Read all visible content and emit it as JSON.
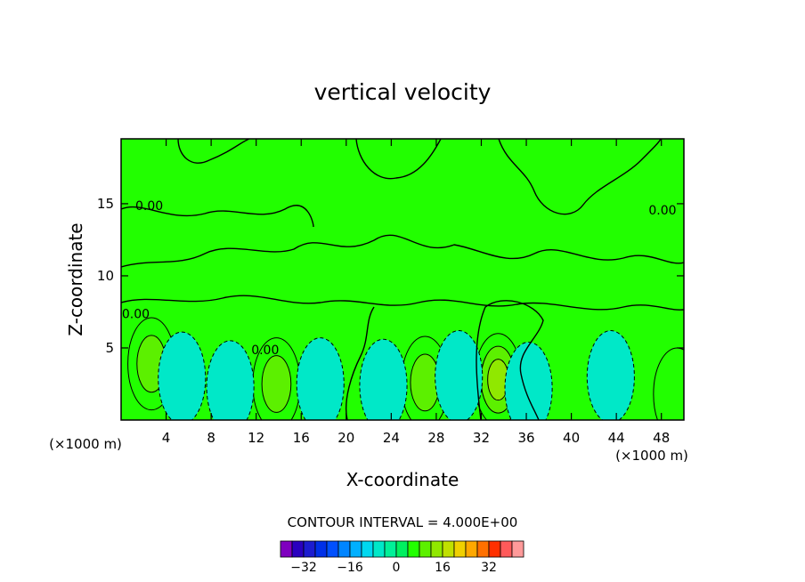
{
  "chart_data": {
    "type": "heatmap",
    "title": "vertical velocity",
    "xlabel": "X-coordinate",
    "ylabel": "Z-coordinate",
    "x_unit": "(×1000 m)",
    "y_unit": "(×1000 m)",
    "xlim": [
      0,
      50
    ],
    "ylim": [
      0,
      19.5
    ],
    "x_ticks": [
      4,
      8,
      12,
      16,
      20,
      24,
      28,
      32,
      36,
      40,
      44,
      48
    ],
    "y_ticks": [
      5,
      10,
      15
    ],
    "contour_interval_label": "CONTOUR INTERVAL = 4.000E+00",
    "contour_labels": [
      {
        "text": "0.00",
        "x": 2.5,
        "y": 14.8
      },
      {
        "text": "0.00",
        "x": 1.3,
        "y": 7.3
      },
      {
        "text": "0.00",
        "x": 12.8,
        "y": 4.8
      },
      {
        "text": "0.00",
        "x": 48.1,
        "y": 14.5
      }
    ],
    "colorbar": {
      "tick_labels": [
        -32,
        -16,
        0,
        16,
        32
      ],
      "levels": [
        -40,
        -36,
        -32,
        -28,
        -24,
        -20,
        -16,
        -12,
        -8,
        -4,
        0,
        4,
        8,
        12,
        16,
        20,
        24,
        28,
        32,
        36,
        40
      ],
      "colors": [
        "#7f00bf",
        "#2a00bf",
        "#1c1cd0",
        "#0030e8",
        "#0050ff",
        "#0085ff",
        "#00b0ff",
        "#00d8f0",
        "#00e8c8",
        "#00f098",
        "#00f060",
        "#22ff00",
        "#5cf000",
        "#90e800",
        "#c0e000",
        "#f0d000",
        "#ffa800",
        "#ff7000",
        "#ff3000",
        "#ff5a5a",
        "#ff9a9a"
      ]
    },
    "background_level_color": "#22ff00",
    "features": [
      {
        "kind": "updraft",
        "x": 2.7,
        "y": 3.9,
        "max": 10
      },
      {
        "kind": "updraft",
        "x": 13.8,
        "y": 2.5,
        "max": 9
      },
      {
        "kind": "updraft",
        "x": 27.0,
        "y": 2.6,
        "max": 10
      },
      {
        "kind": "updraft",
        "x": 33.5,
        "y": 2.8,
        "max": 12
      },
      {
        "kind": "updraft",
        "x": 49.4,
        "y": 1.8,
        "max": 5
      },
      {
        "kind": "downdraft",
        "x": 5.4,
        "y": 2.9,
        "min": -4
      },
      {
        "kind": "downdraft",
        "x": 9.7,
        "y": 2.3,
        "min": -6
      },
      {
        "kind": "downdraft",
        "x": 17.7,
        "y": 2.5,
        "min": -7
      },
      {
        "kind": "downdraft",
        "x": 23.3,
        "y": 2.4,
        "min": -5
      },
      {
        "kind": "downdraft",
        "x": 30.0,
        "y": 3.0,
        "min": -5
      },
      {
        "kind": "downdraft",
        "x": 36.2,
        "y": 2.2,
        "min": -6
      },
      {
        "kind": "downdraft",
        "x": 43.5,
        "y": 3.0,
        "min": -4
      }
    ]
  }
}
